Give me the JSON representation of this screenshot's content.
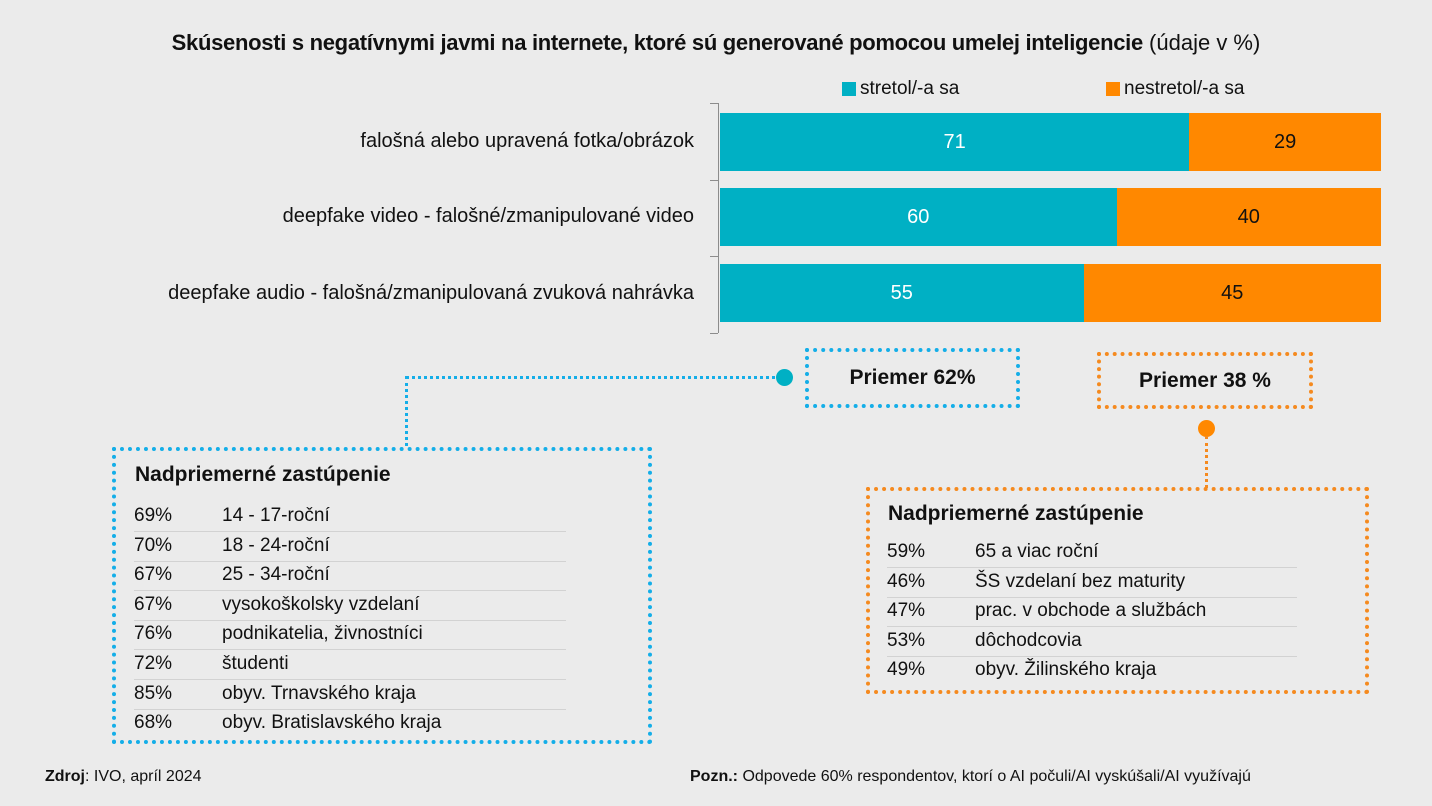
{
  "title": {
    "bold": "Skúsenosti s negatívnymi javmi na internete, ktoré sú generované pomocou umelej inteligencie",
    "unit": "(údaje v %)"
  },
  "colors": {
    "met": "#00b0c4",
    "not_met": "#ff8800",
    "blue_border": "#14aee8",
    "orange_border": "#f58a1f"
  },
  "chart_data": {
    "type": "bar",
    "orientation": "horizontal",
    "stacked": true,
    "title": "Skúsenosti s negatívnymi javmi na internete, ktoré sú generované pomocou umelej inteligencie (údaje v %)",
    "xlabel": "",
    "ylabel": "",
    "xlim": [
      0,
      100
    ],
    "grid": false,
    "legend_position": "top-right",
    "categories": [
      "falošná alebo upravená fotka/obrázok",
      "deepfake video - falošné/zmanipulované video",
      "deepfake audio - falošná/zmanipulovaná zvuková nahrávka"
    ],
    "series": [
      {
        "name": "stretol/-a sa",
        "values": [
          71,
          60,
          55
        ]
      },
      {
        "name": "nestretol/-a sa",
        "values": [
          29,
          40,
          45
        ]
      }
    ]
  },
  "averages": {
    "met": "Priemer 62%",
    "not_met": "Priemer 38 %"
  },
  "left_box": {
    "title": "Nadpriemerné zastúpenie",
    "rows": [
      {
        "pct": "69%",
        "label": "14 - 17-roční"
      },
      {
        "pct": "70%",
        "label": "18 - 24-roční"
      },
      {
        "pct": "67%",
        "label": "25 - 34-roční"
      },
      {
        "pct": "67%",
        "label": "vysokoškolsky vzdelaní"
      },
      {
        "pct": "76%",
        "label": "podnikatelia, živnostníci"
      },
      {
        "pct": "72%",
        "label": "študenti"
      },
      {
        "pct": "85%",
        "label": "obyv. Trnavského kraja"
      },
      {
        "pct": "68%",
        "label": "obyv. Bratislavského kraja"
      }
    ]
  },
  "right_box": {
    "title": "Nadpriemerné zastúpenie",
    "rows": [
      {
        "pct": "59%",
        "label": "65 a viac roční"
      },
      {
        "pct": "46%",
        "label": "ŠS vzdelaní bez maturity"
      },
      {
        "pct": "47%",
        "label": "prac. v obchode a službách"
      },
      {
        "pct": "53%",
        "label": "dôchodcovia"
      },
      {
        "pct": "49%",
        "label": "obyv. Žilinského kraja"
      }
    ]
  },
  "footer": {
    "source_label": "Zdroj",
    "source_text": ": IVO, apríl 2024",
    "note_label": "Pozn.:",
    "note_text": " Odpovede 60% respondentov,  ktorí o AI počuli/AI vyskúšali/AI využívajú"
  }
}
